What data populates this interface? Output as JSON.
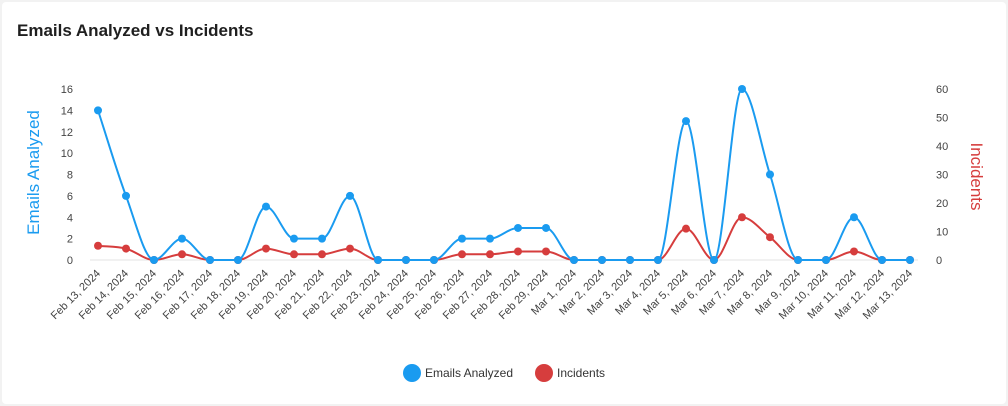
{
  "title": "Emails Analyzed vs Incidents",
  "chart_data": {
    "type": "line",
    "title": "Emails Analyzed vs Incidents",
    "categories": [
      "Feb 13, 2024",
      "Feb 14, 2024",
      "Feb 15, 2024",
      "Feb 16, 2024",
      "Feb 17, 2024",
      "Feb 18, 2024",
      "Feb 19, 2024",
      "Feb 20, 2024",
      "Feb 21, 2024",
      "Feb 22, 2024",
      "Feb 23, 2024",
      "Feb 24, 2024",
      "Feb 25, 2024",
      "Feb 26, 2024",
      "Feb 27, 2024",
      "Feb 28, 2024",
      "Feb 29, 2024",
      "Mar 1, 2024",
      "Mar 2, 2024",
      "Mar 3, 2024",
      "Mar 4, 2024",
      "Mar 5, 2024",
      "Mar 6, 2024",
      "Mar 7, 2024",
      "Mar 8, 2024",
      "Mar 9, 2024",
      "Mar 10, 2024",
      "Mar 11, 2024",
      "Mar 12, 2024",
      "Mar 13, 2024"
    ],
    "series": [
      {
        "name": "Emails Analyzed",
        "axis": "left",
        "color": "#1a9bf0",
        "values": [
          14,
          6,
          0,
          2,
          0,
          0,
          5,
          2,
          2,
          6,
          0,
          0,
          0,
          2,
          2,
          3,
          3,
          0,
          0,
          0,
          0,
          13,
          0,
          16,
          8,
          0,
          0,
          4,
          0,
          0
        ]
      },
      {
        "name": "Incidents",
        "axis": "right",
        "color": "#d63d3d",
        "values": [
          5,
          4,
          0,
          2,
          0,
          0,
          4,
          2,
          2,
          4,
          0,
          0,
          0,
          2,
          2,
          3,
          3,
          0,
          0,
          0,
          0,
          11,
          0,
          15,
          8,
          0,
          0,
          3,
          0,
          0
        ]
      }
    ],
    "y_left": {
      "label": "Emails Analyzed",
      "min": 0,
      "max": 16,
      "ticks": [
        0,
        2,
        4,
        6,
        8,
        10,
        12,
        14,
        16
      ]
    },
    "y_right": {
      "label": "Incidents",
      "min": 0,
      "max": 60,
      "ticks": [
        0,
        10,
        20,
        30,
        40,
        50,
        60
      ]
    },
    "grid": false,
    "legend_position": "bottom-center"
  }
}
